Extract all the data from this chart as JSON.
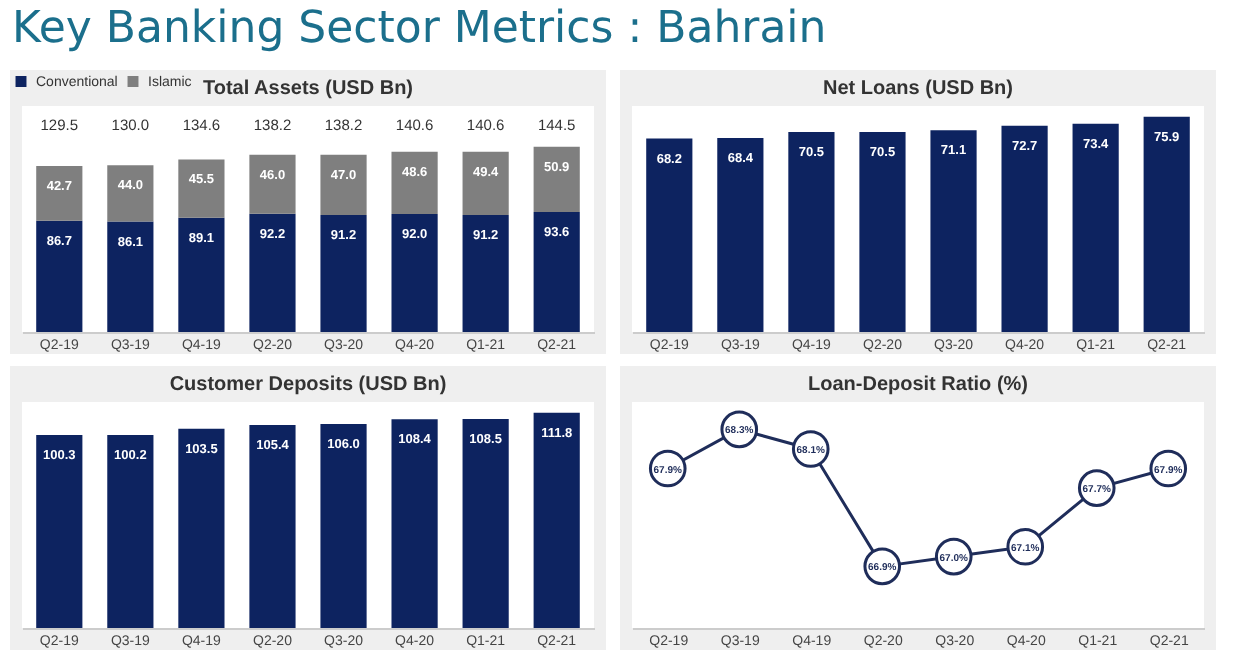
{
  "chart_data": [
    {
      "type": "other",
      "title": "Key Banking Sector Metrics : Bahrain"
    },
    {
      "type": "bar",
      "title": "Total Assets (USD Bn)",
      "categories": [
        "Q2-19",
        "Q3-19",
        "Q4-19",
        "Q2-20",
        "Q3-20",
        "Q4-20",
        "Q1-21",
        "Q2-21"
      ],
      "stacked": true,
      "legend": "top left",
      "series": [
        {
          "name": "Conventional",
          "color": "#0d2360",
          "values": [
            86.7,
            86.1,
            89.1,
            92.2,
            91.2,
            92.0,
            91.2,
            93.6
          ],
          "value_labels": [
            "86.7",
            "86.1",
            "89.1",
            "92.2",
            "91.2",
            "92.0",
            "91.2",
            "93.6"
          ]
        },
        {
          "name": "Islamic",
          "color": "#7f7f7f",
          "values": [
            42.7,
            44.0,
            45.5,
            46.0,
            47.0,
            48.6,
            49.4,
            50.9
          ],
          "value_labels": [
            "42.7",
            "44.0",
            "45.5",
            "46.0",
            "47.0",
            "48.6",
            "49.4",
            "50.9"
          ]
        }
      ],
      "totals": [
        "129.5",
        "130.0",
        "134.6",
        "138.2",
        "138.2",
        "140.6",
        "140.6",
        "144.5"
      ]
    },
    {
      "type": "bar",
      "title": "Net Loans (USD Bn)",
      "categories": [
        "Q2-19",
        "Q3-19",
        "Q4-19",
        "Q2-20",
        "Q3-20",
        "Q4-20",
        "Q1-21",
        "Q2-21"
      ],
      "data_labels": true,
      "color": "#0d2360",
      "values": [
        68.2,
        68.4,
        70.5,
        70.5,
        71.1,
        72.7,
        73.4,
        75.9
      ]
    },
    {
      "type": "bar",
      "title": "Customer Deposits (USD Bn)",
      "categories": [
        "Q2-19",
        "Q3-19",
        "Q4-19",
        "Q2-20",
        "Q3-20",
        "Q4-20",
        "Q1-21",
        "Q2-21"
      ],
      "color": "#0d2360",
      "values": [
        100.3,
        100.2,
        103.5,
        105.4,
        106.0,
        108.4,
        108.5,
        111.8
      ],
      "value_labels": [
        "100.3",
        "100.2",
        "103.5",
        "105.4",
        "106.0",
        "108.4",
        "108.5",
        "111.8"
      ]
    },
    {
      "type": "line",
      "title": "Loan-Deposit Ratio (%)",
      "categories": [
        "Q2-19",
        "Q3-19",
        "Q4-19",
        "Q2-20",
        "Q3-20",
        "Q4-20",
        "Q1-21",
        "Q2-21"
      ],
      "marker": "circle",
      "color": "#1f2d5a",
      "value_labels": [
        "67.9%",
        "68.3%",
        "68.1%",
        "66.9%",
        "67.0%",
        "67.1%",
        "67.7%",
        "67.9%"
      ],
      "values": [
        67.9,
        68.3,
        68.1,
        66.9,
        67.0,
        67.1,
        67.7,
        67.9
      ]
    }
  ]
}
